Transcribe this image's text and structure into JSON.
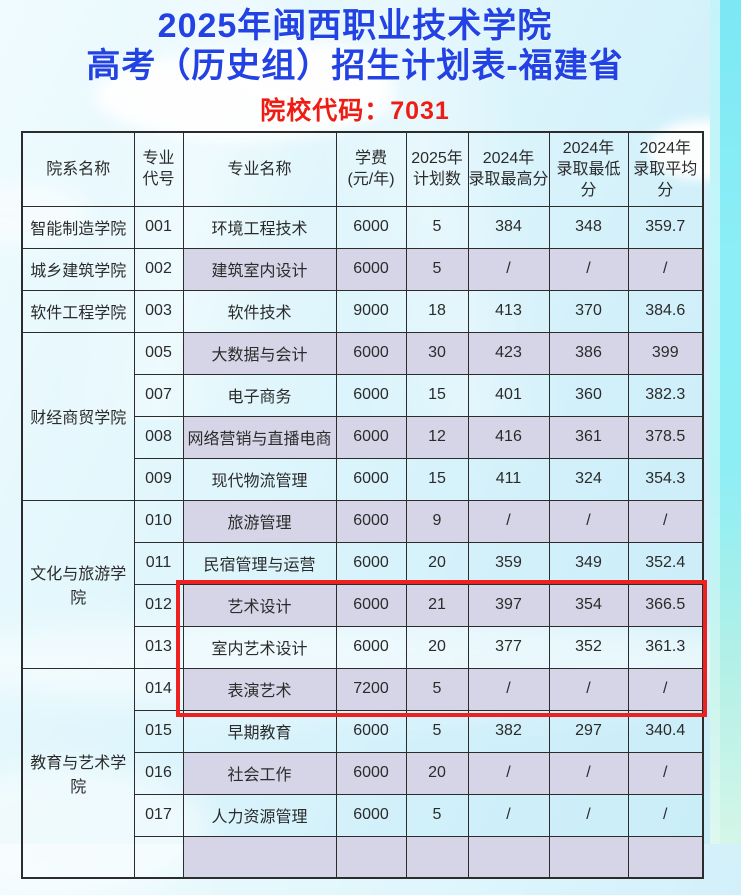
{
  "header": {
    "title_line1": "2025年闽西职业技术学院",
    "title_line2": "高考（历史组）招生计划表-福建省",
    "school_code": "院校代码：7031"
  },
  "colors": {
    "title_blue": "#2342e4",
    "code_red": "#ee1c13",
    "highlight_red": "#ee2120",
    "row_lavender": "#d6d5e7",
    "border_dark": "#2c2c2c",
    "text_dark": "#2b2b2b",
    "sky_cyan": "#cfeffa",
    "strip_cyan": "#8ceef6"
  },
  "table": {
    "headers": [
      "院系名称",
      "专业\n代号",
      "专业名称",
      "学费\n(元/年)",
      "2025年\n计划数",
      "2024年\n录取最高分",
      "2024年\n录取最低分",
      "2024年\n录取平均分"
    ],
    "rows": [
      {
        "dept": "智能制造学院",
        "dept_span": 1,
        "code": "001",
        "major": "环境工程技术",
        "fee": "6000",
        "plan": "5",
        "max": "384",
        "min": "348",
        "avg": "359.7",
        "shaded": false
      },
      {
        "dept": "城乡建筑学院",
        "dept_span": 1,
        "code": "002",
        "major": "建筑室内设计",
        "fee": "6000",
        "plan": "5",
        "max": "/",
        "min": "/",
        "avg": "/",
        "shaded": true
      },
      {
        "dept": "软件工程学院",
        "dept_span": 1,
        "code": "003",
        "major": "软件技术",
        "fee": "9000",
        "plan": "18",
        "max": "413",
        "min": "370",
        "avg": "384.6",
        "shaded": false
      },
      {
        "dept": "财经商贸学院",
        "dept_span": 4,
        "code": "005",
        "major": "大数据与会计",
        "fee": "6000",
        "plan": "30",
        "max": "423",
        "min": "386",
        "avg": "399",
        "shaded": true
      },
      {
        "code": "007",
        "major": "电子商务",
        "fee": "6000",
        "plan": "15",
        "max": "401",
        "min": "360",
        "avg": "382.3",
        "shaded": false
      },
      {
        "code": "008",
        "major": "网络营销与直播电商",
        "fee": "6000",
        "plan": "12",
        "max": "416",
        "min": "361",
        "avg": "378.5",
        "shaded": true
      },
      {
        "code": "009",
        "major": "现代物流管理",
        "fee": "6000",
        "plan": "15",
        "max": "411",
        "min": "324",
        "avg": "354.3",
        "shaded": false
      },
      {
        "dept": "文化与旅游学院",
        "dept_span": 4,
        "code": "010",
        "major": "旅游管理",
        "fee": "6000",
        "plan": "9",
        "max": "/",
        "min": "/",
        "avg": "/",
        "shaded": true
      },
      {
        "code": "011",
        "major": "民宿管理与运营",
        "fee": "6000",
        "plan": "20",
        "max": "359",
        "min": "349",
        "avg": "352.4",
        "shaded": false
      },
      {
        "code": "012",
        "major": "艺术设计",
        "fee": "6000",
        "plan": "21",
        "max": "397",
        "min": "354",
        "avg": "366.5",
        "shaded": true
      },
      {
        "code": "013",
        "major": "室内艺术设计",
        "fee": "6000",
        "plan": "20",
        "max": "377",
        "min": "352",
        "avg": "361.3",
        "shaded": false
      },
      {
        "dept": "教育与艺术学院",
        "dept_span": 5,
        "code": "014",
        "major": "表演艺术",
        "fee": "7200",
        "plan": "5",
        "max": "/",
        "min": "/",
        "avg": "/",
        "shaded": true
      },
      {
        "code": "015",
        "major": "早期教育",
        "fee": "6000",
        "plan": "5",
        "max": "382",
        "min": "297",
        "avg": "340.4",
        "shaded": false
      },
      {
        "code": "016",
        "major": "社会工作",
        "fee": "6000",
        "plan": "20",
        "max": "/",
        "min": "/",
        "avg": "/",
        "shaded": true
      },
      {
        "code": "017",
        "major": "人力资源管理",
        "fee": "6000",
        "plan": "5",
        "max": "/",
        "min": "/",
        "avg": "/",
        "shaded": false
      },
      {
        "code": "",
        "major": "",
        "fee": "",
        "plan": "",
        "max": "",
        "min": "",
        "avg": "",
        "shaded": true,
        "partial": true
      }
    ]
  }
}
